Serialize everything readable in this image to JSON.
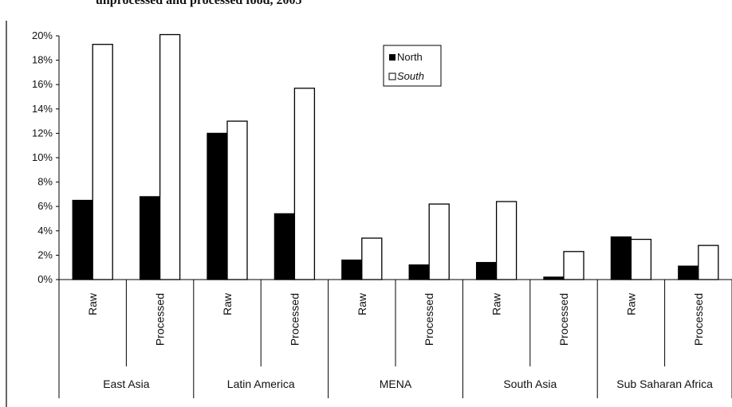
{
  "chart_data": {
    "type": "bar",
    "title": "unprocessed and processed food, 2005",
    "groups": [
      "East Asia",
      "Latin America",
      "MENA",
      "South Asia",
      "Sub Saharan Africa"
    ],
    "subcategories": [
      "Raw",
      "Processed"
    ],
    "series": [
      {
        "name": "North",
        "values": [
          6.5,
          6.8,
          12.0,
          5.4,
          1.6,
          1.2,
          1.4,
          0.2,
          3.5,
          1.1
        ]
      },
      {
        "name": "South",
        "values": [
          19.3,
          20.1,
          13.0,
          15.7,
          3.4,
          6.2,
          6.4,
          2.3,
          3.3,
          2.8
        ]
      }
    ],
    "yticks": [
      "0%",
      "2%",
      "4%",
      "6%",
      "8%",
      "10%",
      "12%",
      "14%",
      "16%",
      "18%",
      "20%"
    ],
    "ylim": [
      0,
      20
    ],
    "ylabel": "",
    "xlabel": "",
    "legend_position": "top-center",
    "colors": {
      "North": "#000000",
      "South": "#ffffff",
      "border": "#000000"
    }
  }
}
